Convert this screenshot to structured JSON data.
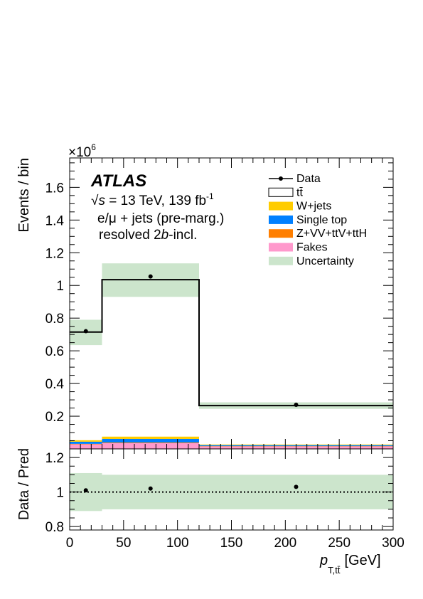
{
  "chart_data": [
    {
      "type": "bar",
      "panel": "main",
      "bins": [
        [
          0,
          30
        ],
        [
          30,
          120
        ],
        [
          120,
          300
        ]
      ],
      "xlim": [
        0,
        300
      ],
      "ylim": [
        0,
        1.78
      ],
      "y_multiplier": "×10",
      "y_multiplier_exp": "6",
      "ylabel": "Events / bin",
      "yticks": [
        0.2,
        0.4,
        0.6,
        0.8,
        1,
        1.2,
        1.4,
        1.6
      ],
      "data": {
        "x": [
          15,
          75,
          210
        ],
        "y": [
          0.72,
          1.055,
          0.27
        ]
      },
      "ttbar": [
        0.715,
        1.035,
        0.265
      ],
      "uncertainty": [
        [
          0.635,
          0.79
        ],
        [
          0.93,
          1.135
        ],
        [
          0.245,
          0.285
        ]
      ],
      "stack": [
        {
          "name": "Fakes",
          "color": "#ff99cc",
          "values": [
            0.028,
            0.035,
            0.015
          ]
        },
        {
          "name": "Z+VV+ttV+ttH",
          "color": "#ff7f00",
          "values": [
            0.003,
            0.004,
            0.002
          ]
        },
        {
          "name": "Single top",
          "color": "#0080ff",
          "values": [
            0.013,
            0.022,
            0.006
          ]
        },
        {
          "name": "W+jets",
          "color": "#ffcc00",
          "values": [
            0.009,
            0.014,
            0.004
          ]
        }
      ],
      "legend_position": "top-right",
      "legend": [
        {
          "kind": "data",
          "label": "Data"
        },
        {
          "kind": "box",
          "label": "tt̄",
          "fill": "#ffffff"
        },
        {
          "kind": "box",
          "label": "W+jets",
          "fill": "#ffcc00"
        },
        {
          "kind": "box",
          "label": "Single top",
          "fill": "#0080ff"
        },
        {
          "kind": "box",
          "label": "Z+VV+ttV+ttH",
          "fill": "#ff7f00"
        },
        {
          "kind": "box",
          "label": "Fakes",
          "fill": "#ff99cc"
        },
        {
          "kind": "box",
          "label": "Uncertainty",
          "fill": "#cce5cc"
        }
      ]
    },
    {
      "type": "scatter",
      "panel": "ratio",
      "bins": [
        [
          0,
          30
        ],
        [
          30,
          120
        ],
        [
          120,
          300
        ]
      ],
      "xlim": [
        0,
        300
      ],
      "ylim": [
        0.78,
        1.25
      ],
      "ylabel": "Data / Pred",
      "yticks": [
        0.8,
        1,
        1.2
      ],
      "ratio": {
        "x": [
          15,
          75,
          210
        ],
        "y": [
          1.01,
          1.02,
          1.03
        ]
      },
      "uncertainty": [
        [
          0.89,
          1.11
        ],
        [
          0.9,
          1.1
        ],
        [
          0.9,
          1.1
        ]
      ],
      "reference_line": 1,
      "xticks": [
        0,
        50,
        100,
        150,
        200,
        250,
        300
      ],
      "xlabel_main": "p",
      "xlabel_sub": "T,tt̄",
      "xlabel_unit": "[GeV]"
    }
  ],
  "labels": {
    "atlas": "ATLAS",
    "energy_sqrt": "√",
    "energy_s": "s",
    "energy_rest": " = 13 TeV, 139 fb",
    "energy_exp": "-1",
    "channel": "e/μ + jets (pre-marg.)",
    "region_a": "resolved 2",
    "region_b": "b",
    "region_c": "-incl."
  },
  "colors": {
    "uncertainty": "#cce5cc",
    "ttbar_line": "#000000"
  }
}
